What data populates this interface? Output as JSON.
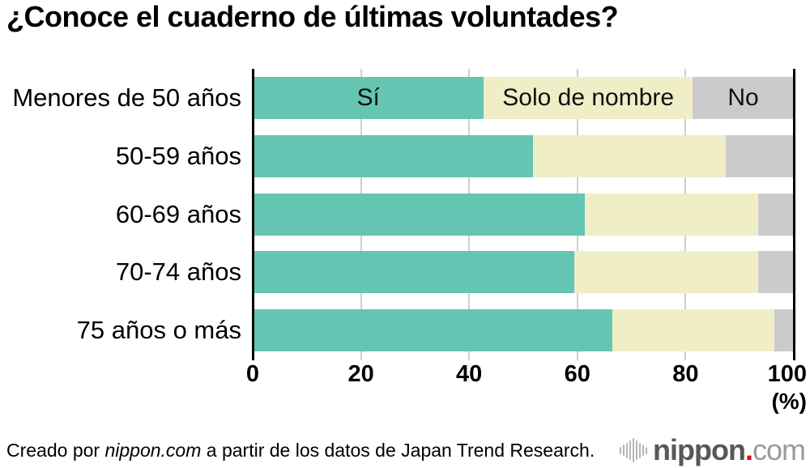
{
  "title": "¿Conoce el cuaderno de últimas voluntades?",
  "chart_data": {
    "type": "bar",
    "stacked": true,
    "orientation": "horizontal",
    "title": "¿Conoce el cuaderno de últimas voluntades?",
    "categories": [
      "Menores de 50 años",
      "50-59 años",
      "60-69 años",
      "70-74 años",
      "75 años o más"
    ],
    "series": [
      {
        "name": "Sí",
        "color": "#65c5b3",
        "values": [
          42.7,
          51.8,
          61.4,
          59.4,
          66.4
        ]
      },
      {
        "name": "Solo de nombre",
        "color": "#f0eec7",
        "values": [
          38.6,
          35.6,
          32.0,
          34.0,
          30.0
        ]
      },
      {
        "name": "No",
        "color": "#cbcbcb",
        "values": [
          18.7,
          12.6,
          6.6,
          6.6,
          3.6
        ]
      }
    ],
    "xlim": [
      0,
      100
    ],
    "x_ticks": [
      0,
      20,
      40,
      60,
      80,
      100
    ],
    "x_unit_label": "(%)",
    "legend": "labels-inside-first-bar",
    "grid": "vertical-gridlines",
    "axis_color": "#000000",
    "gridline_color": "#cfcfcf"
  },
  "footer": {
    "credit_prefix": "Creado por ",
    "credit_source": "nippon.com",
    "credit_suffix": " a partir de los datos de Japan Trend Research.",
    "logo": {
      "text_main": "nippon",
      "text_dot": ".",
      "text_tld": "com",
      "colors": {
        "icon": "#b5b5b5",
        "main": "#595757",
        "dot": "#e60012",
        "tld": "#9b9b9b"
      }
    }
  }
}
